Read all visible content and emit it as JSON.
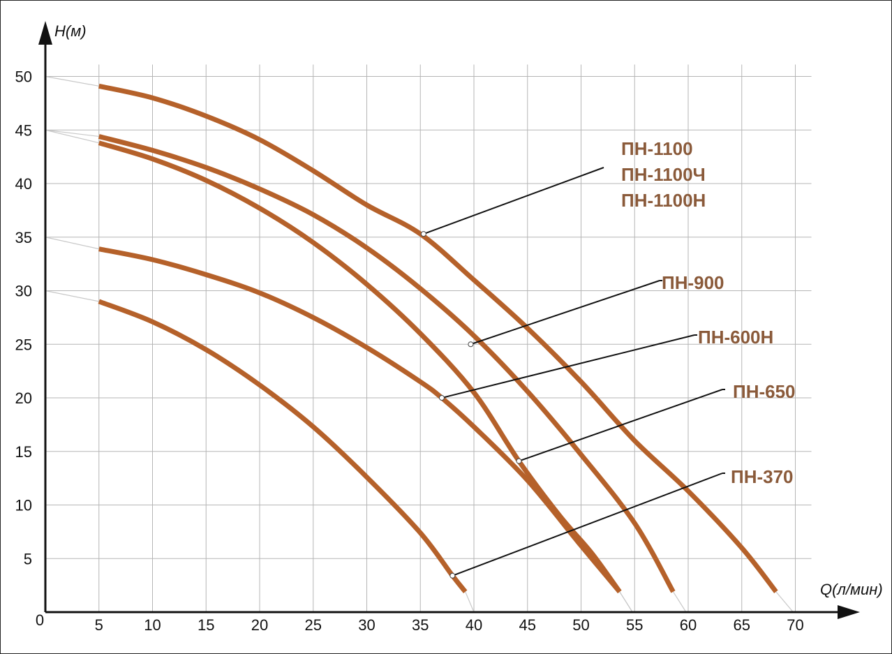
{
  "colors": {
    "curve": "#b5612a",
    "label": "#8a5a3a",
    "grid": "#b5b5b5",
    "axis": "#111111",
    "extension": "#c8c8c8"
  },
  "chart_data": {
    "type": "line",
    "title": "",
    "xlabel": "Q(л/мин)",
    "ylabel": "H(м)",
    "origin_label": "0",
    "xlim": [
      0,
      70
    ],
    "ylim": [
      0,
      50
    ],
    "x_ticks": [
      5,
      10,
      15,
      20,
      25,
      30,
      35,
      40,
      45,
      50,
      55,
      60,
      65,
      70
    ],
    "y_ticks": [
      5,
      10,
      15,
      20,
      25,
      30,
      35,
      40,
      45,
      50
    ],
    "grid": true,
    "series": [
      {
        "name": "ПН-1100 ПН-1100Ч ПН-1100Н",
        "label_lines": [
          "ПН-1100",
          "ПН-1100Ч",
          "ПН-1100Н"
        ],
        "shutoff_head": 50,
        "points": [
          [
            5,
            49.1
          ],
          [
            10,
            48.0
          ],
          [
            15,
            46.3
          ],
          [
            20,
            44.1
          ],
          [
            25,
            41.2
          ],
          [
            30,
            38.0
          ],
          [
            35,
            35.3
          ],
          [
            40,
            31.0
          ],
          [
            45,
            26.5
          ],
          [
            50,
            21.5
          ],
          [
            55,
            16.0
          ],
          [
            60,
            11.3
          ],
          [
            65,
            6.0
          ],
          [
            68.2,
            1.9
          ]
        ],
        "end_x": 69.8,
        "marker": [
          35.3,
          35.3
        ]
      },
      {
        "name": "ПН-900",
        "label_lines": [
          "ПН-900"
        ],
        "shutoff_head": 45,
        "points": [
          [
            5,
            44.4
          ],
          [
            10,
            43.1
          ],
          [
            15,
            41.5
          ],
          [
            20,
            39.5
          ],
          [
            25,
            37.1
          ],
          [
            30,
            34.0
          ],
          [
            35,
            30.2
          ],
          [
            40,
            25.8
          ],
          [
            45,
            20.6
          ],
          [
            50,
            14.7
          ],
          [
            55,
            8.3
          ],
          [
            58.6,
            1.9
          ]
        ],
        "end_x": 59.8,
        "marker": [
          39.7,
          25.0
        ]
      },
      {
        "name": "ПН-650",
        "label_lines": [
          "ПН-650"
        ],
        "shutoff_head": 45,
        "points": [
          [
            5,
            43.8
          ],
          [
            10,
            42.3
          ],
          [
            15,
            40.3
          ],
          [
            20,
            37.7
          ],
          [
            25,
            34.5
          ],
          [
            30,
            30.6
          ],
          [
            35,
            26.0
          ],
          [
            40,
            20.5
          ],
          [
            44.2,
            14.1
          ],
          [
            48,
            9.0
          ],
          [
            51,
            5.5
          ],
          [
            53.6,
            1.9
          ]
        ],
        "end_x": 54.8,
        "marker": [
          44.2,
          14.1
        ]
      },
      {
        "name": "ПН-600Н",
        "label_lines": [
          "ПН-600Н"
        ],
        "shutoff_head": 35,
        "points": [
          [
            5,
            33.9
          ],
          [
            10,
            32.9
          ],
          [
            15,
            31.5
          ],
          [
            20,
            29.8
          ],
          [
            25,
            27.5
          ],
          [
            30,
            24.7
          ],
          [
            35,
            21.5
          ],
          [
            37,
            20.0
          ],
          [
            40,
            17.3
          ],
          [
            45,
            12.3
          ],
          [
            50,
            6.2
          ],
          [
            53.6,
            1.9
          ]
        ],
        "end_x": 54.8,
        "marker": [
          37.0,
          20.0
        ]
      },
      {
        "name": "ПН-370",
        "label_lines": [
          "ПН-370"
        ],
        "shutoff_head": 30,
        "points": [
          [
            5,
            29.0
          ],
          [
            10,
            27.1
          ],
          [
            15,
            24.5
          ],
          [
            20,
            21.2
          ],
          [
            25,
            17.3
          ],
          [
            30,
            12.6
          ],
          [
            35,
            7.4
          ],
          [
            38,
            3.4
          ],
          [
            39.2,
            1.9
          ]
        ],
        "end_x": 40.0,
        "marker": [
          38.0,
          3.4
        ]
      }
    ]
  }
}
